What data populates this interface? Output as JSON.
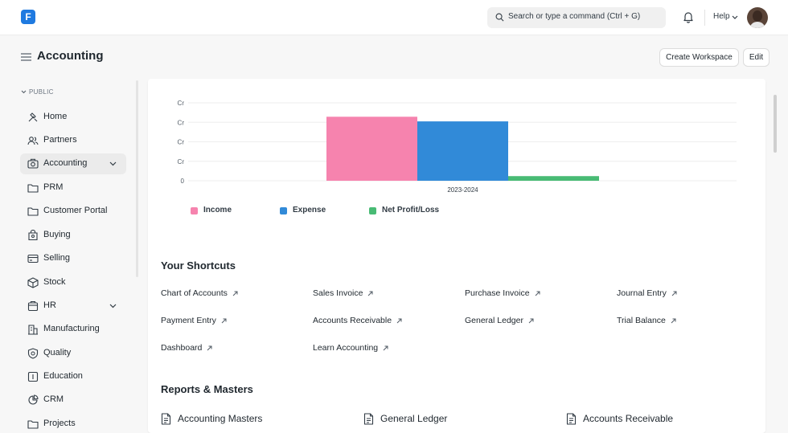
{
  "topbar": {
    "logo_glyph": "F",
    "search_placeholder": "Search or type a command (Ctrl + G)",
    "help_label": "Help"
  },
  "header": {
    "title": "Accounting",
    "create_workspace_label": "Create Workspace",
    "edit_label": "Edit"
  },
  "sidebar": {
    "section_label": "PUBLIC",
    "items": [
      {
        "label": "Home",
        "icon": "tools-icon"
      },
      {
        "label": "Partners",
        "icon": "users-icon"
      },
      {
        "label": "Accounting",
        "icon": "camera-icon",
        "active": true,
        "expandable": true
      },
      {
        "label": "PRM",
        "icon": "folder-icon"
      },
      {
        "label": "Customer Portal",
        "icon": "folder-icon"
      },
      {
        "label": "Buying",
        "icon": "bag-icon"
      },
      {
        "label": "Selling",
        "icon": "card-icon"
      },
      {
        "label": "Stock",
        "icon": "box-icon"
      },
      {
        "label": "HR",
        "icon": "hr-icon",
        "expandable": true
      },
      {
        "label": "Manufacturing",
        "icon": "building-icon"
      },
      {
        "label": "Quality",
        "icon": "shield-icon"
      },
      {
        "label": "Education",
        "icon": "book-icon"
      },
      {
        "label": "CRM",
        "icon": "pie-icon"
      },
      {
        "label": "Projects",
        "icon": "folder-icon"
      }
    ]
  },
  "chart_data": {
    "type": "bar",
    "categories": [
      "2023-2024"
    ],
    "y_tick_labels": [
      "Cr",
      "Cr",
      "Cr",
      "Cr",
      "0"
    ],
    "series": [
      {
        "name": "Income",
        "values": [
          3.45
        ],
        "color": "#f683ae"
      },
      {
        "name": "Expense",
        "values": [
          3.2
        ],
        "color": "#318ad8"
      },
      {
        "name": "Net Profit/Loss",
        "values": [
          0.25
        ],
        "color": "#48bb74"
      }
    ],
    "ylim": [
      0,
      4.2
    ],
    "grid": true,
    "legend_position": "bottom-left"
  },
  "shortcuts": {
    "title": "Your Shortcuts",
    "items": [
      "Chart of Accounts",
      "Sales Invoice",
      "Purchase Invoice",
      "Journal Entry",
      "Payment Entry",
      "Accounts Receivable",
      "General Ledger",
      "Trial Balance",
      "Dashboard",
      "Learn Accounting"
    ]
  },
  "reports": {
    "title": "Reports & Masters",
    "items": [
      "Accounting Masters",
      "General Ledger",
      "Accounts Receivable"
    ]
  }
}
